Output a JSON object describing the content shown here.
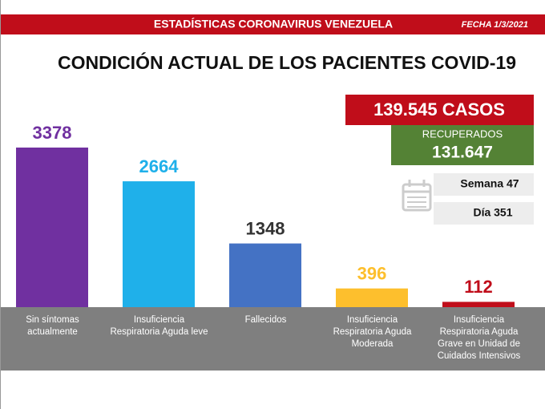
{
  "chart_data": {
    "type": "bar",
    "header": "ESTADÍSTICAS CORONAVIRUS VENEZUELA",
    "date": "FECHA 1/3/2021",
    "title": "CONDICIÓN ACTUAL DE LOS PACIENTES COVID-19",
    "cases": "139.545 CASOS",
    "recovered_label": "RECUPERADOS",
    "recovered": "131.647",
    "week": "Semana 47",
    "day": "Día 351",
    "categories": [
      "Sin síntomas\nactualmente",
      "Insuficiencia\nRespiratoria Aguda leve",
      "Fallecidos",
      "Insuficiencia\nRespiratoria Aguda\nModerada",
      "Insuficiencia\nRespiratoria Aguda\nGrave en Unidad de\nCuidados Intensivos"
    ],
    "values": [
      3378,
      2664,
      1348,
      396,
      112
    ],
    "colors": [
      "#7030a0",
      "#1fb0ea",
      "#4472c4",
      "#fdbf2d",
      "#c00d1a"
    ],
    "value_label_colors": [
      "#7030a0",
      "#1fb0ea",
      "#333333",
      "#fdbf2d",
      "#c00d1a"
    ]
  }
}
